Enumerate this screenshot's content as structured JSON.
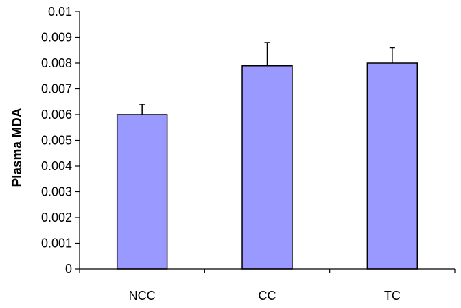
{
  "chart_data": {
    "type": "bar",
    "title": "",
    "xlabel": "",
    "ylabel": "Plasma MDA",
    "categories": [
      "NCC",
      "CC",
      "TC"
    ],
    "series": [
      {
        "values": [
          0.006,
          0.0079,
          0.008
        ],
        "error_plus": [
          0.0004,
          0.0009,
          0.0006
        ]
      }
    ],
    "ylim": [
      0,
      0.01
    ],
    "yticks": [
      0,
      0.001,
      0.002,
      0.003,
      0.004,
      0.005,
      0.006,
      0.007,
      0.008,
      0.009,
      0.01
    ],
    "ytick_labels": [
      "0",
      "0.001",
      "0.002",
      "0.003",
      "0.004",
      "0.005",
      "0.006",
      "0.007",
      "0.008",
      "0.009",
      "0.01"
    ],
    "grid": false,
    "legend": "none",
    "bar_color": "#9999FF",
    "bar_edge_color": "#000000"
  }
}
